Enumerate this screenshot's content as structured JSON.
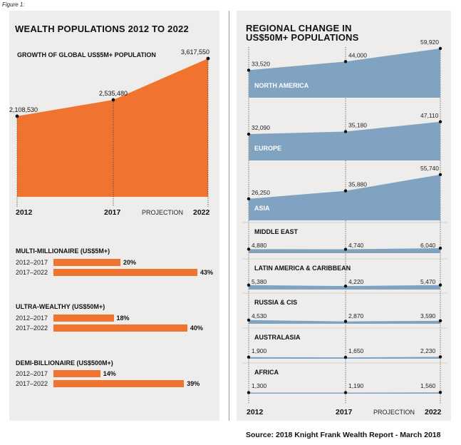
{
  "figure_label": "Figure 1:",
  "source": "Source: 2018 Knight Frank Wealth Report - March 2018",
  "left_panel": {
    "title": "WEALTH POPULATIONS 2012 TO 2022",
    "x_ticks": [
      "2012",
      "2017",
      "2022"
    ],
    "projection_label": "PROJECTION",
    "colors": {
      "area": "#f07330",
      "panel": "#eeedeb"
    }
  },
  "right_panel": {
    "title_line1": "REGIONAL CHANGE IN",
    "title_line2": "US$50M+ POPULATIONS",
    "x_ticks": [
      "2012",
      "2017",
      "2022"
    ],
    "projection_label": "PROJECTION",
    "colors": {
      "area": "#7fa3c1",
      "panel": "#eeedeb"
    }
  },
  "chart_data": [
    {
      "type": "area",
      "subtitle": "GROWTH OF GLOBAL US$5M+ POPULATION",
      "x": [
        "2012",
        "2017",
        "2022"
      ],
      "values": [
        2108530,
        2535480,
        3617550
      ],
      "value_labels": [
        "2,108,530",
        "2,535,480",
        "3,617,550"
      ],
      "ylim": [
        0,
        3617550
      ]
    },
    {
      "type": "bar",
      "orientation": "horizontal",
      "groups": [
        {
          "title": "MULTI-MILLIONAIRE (US$5M+)",
          "rows": [
            {
              "label": "2012–2017",
              "value": 20,
              "text": "20%"
            },
            {
              "label": "2017–2022",
              "value": 43,
              "text": "43%"
            }
          ]
        },
        {
          "title": "ULTRA-WEALTHY (US$50M+)",
          "rows": [
            {
              "label": "2012–2017",
              "value": 18,
              "text": "18%"
            },
            {
              "label": "2017–2022",
              "value": 40,
              "text": "40%"
            }
          ]
        },
        {
          "title": "DEMI-BILLIONAIRE (US$500M+)",
          "rows": [
            {
              "label": "2012–2017",
              "value": 14,
              "text": "14%"
            },
            {
              "label": "2017–2022",
              "value": 39,
              "text": "39%"
            }
          ]
        }
      ],
      "xlim": [
        0,
        43
      ]
    },
    {
      "type": "area",
      "x": [
        "2012",
        "2017",
        "2022"
      ],
      "ylim": [
        0,
        59920
      ],
      "series": [
        {
          "name": "NORTH AMERICA",
          "values": [
            33520,
            44000,
            59920
          ],
          "labels": [
            "33,520",
            "44,000",
            "59,920"
          ]
        },
        {
          "name": "EUROPE",
          "values": [
            32090,
            35180,
            47110
          ],
          "labels": [
            "32,090",
            "35,180",
            "47,110"
          ]
        },
        {
          "name": "ASIA",
          "values": [
            26250,
            35880,
            55740
          ],
          "labels": [
            "26,250",
            "35,880",
            "55,740"
          ]
        },
        {
          "name": "MIDDLE EAST",
          "values": [
            4880,
            4740,
            6040
          ],
          "labels": [
            "4,880",
            "4,740",
            "6,040"
          ]
        },
        {
          "name": "LATIN AMERICA & CARIBBEAN",
          "values": [
            5380,
            4220,
            5470
          ],
          "labels": [
            "5,380",
            "4,220",
            "5,470"
          ]
        },
        {
          "name": "RUSSIA & CIS",
          "values": [
            4530,
            2870,
            3590
          ],
          "labels": [
            "4,530",
            "2,870",
            "3,590"
          ]
        },
        {
          "name": "AUSTRALASIA",
          "values": [
            1900,
            1650,
            2230
          ],
          "labels": [
            "1,900",
            "1,650",
            "2,230"
          ]
        },
        {
          "name": "AFRICA",
          "values": [
            1300,
            1190,
            1560
          ],
          "labels": [
            "1,300",
            "1,190",
            "1,560"
          ]
        }
      ]
    }
  ]
}
